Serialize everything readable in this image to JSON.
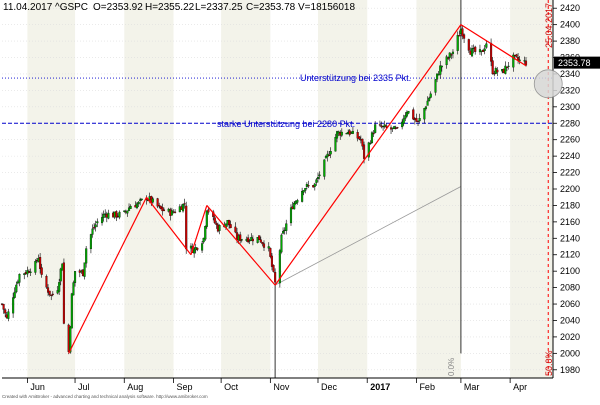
{
  "header": {
    "date": "11.04.2017",
    "symbol": "^GSPC",
    "open": "O=2353.92",
    "high": "H=2355.22",
    "low": "L=2337.25",
    "close": "C=2353.78",
    "volume": "V=18156018"
  },
  "credit": "Created with AmiBroker - advanced charting and technical analysis software. http://www.amibroker.com",
  "colors": {
    "up_candle": "#00aa00",
    "down_candle": "#cc0000",
    "wick": "#000000",
    "trend_line": "#ff0000",
    "support_line": "#0000cc",
    "price_label_bg": "#000000",
    "stripe_shade": "#f3f3ea",
    "date_line": "#ff0000",
    "gray_channel": "#999999"
  },
  "chart_data": {
    "type": "candlestick",
    "title": "^GSPC",
    "ylim": [
      1970,
      2430
    ],
    "y_ticks": [
      1980,
      2000,
      2020,
      2040,
      2060,
      2080,
      2100,
      2120,
      2140,
      2160,
      2180,
      2200,
      2220,
      2240,
      2260,
      2280,
      2300,
      2320,
      2340,
      2360,
      2380,
      2400,
      2420
    ],
    "x_range": [
      "2016-05-16",
      "2017-04-28"
    ],
    "x_ticks": [
      {
        "date": "2016-06-01",
        "label": "Jun",
        "bold": false
      },
      {
        "date": "2016-07-01",
        "label": "Jul",
        "bold": false
      },
      {
        "date": "2016-08-01",
        "label": "Aug",
        "bold": false
      },
      {
        "date": "2016-09-01",
        "label": "Sep",
        "bold": false
      },
      {
        "date": "2016-10-01",
        "label": "Oct",
        "bold": false
      },
      {
        "date": "2016-11-01",
        "label": "Nov",
        "bold": false
      },
      {
        "date": "2016-12-01",
        "label": "Dec",
        "bold": false
      },
      {
        "date": "2017-01-01",
        "label": "2017",
        "bold": true
      },
      {
        "date": "2017-02-01",
        "label": "Feb",
        "bold": false
      },
      {
        "date": "2017-03-01",
        "label": "Mar",
        "bold": false
      },
      {
        "date": "2017-04-01",
        "label": "Apr",
        "bold": false
      }
    ],
    "price_points": [
      [
        "2016-05-16",
        2060
      ],
      [
        "2016-05-19",
        2042
      ],
      [
        "2016-05-24",
        2078
      ],
      [
        "2016-05-27",
        2096
      ],
      [
        "2016-06-01",
        2100
      ],
      [
        "2016-06-06",
        2108
      ],
      [
        "2016-06-08",
        2118
      ],
      [
        "2016-06-10",
        2092
      ],
      [
        "2016-06-13",
        2080
      ],
      [
        "2016-06-16",
        2070
      ],
      [
        "2016-06-20",
        2080
      ],
      [
        "2016-06-23",
        2112
      ],
      [
        "2016-06-24",
        2036
      ],
      [
        "2016-06-27",
        2002
      ],
      [
        "2016-06-29",
        2070
      ],
      [
        "2016-07-01",
        2100
      ],
      [
        "2016-07-06",
        2098
      ],
      [
        "2016-07-08",
        2128
      ],
      [
        "2016-07-12",
        2150
      ],
      [
        "2016-07-15",
        2160
      ],
      [
        "2016-07-20",
        2170
      ],
      [
        "2016-07-26",
        2168
      ],
      [
        "2016-08-01",
        2170
      ],
      [
        "2016-08-05",
        2180
      ],
      [
        "2016-08-10",
        2182
      ],
      [
        "2016-08-15",
        2190
      ],
      [
        "2016-08-19",
        2184
      ],
      [
        "2016-08-24",
        2175
      ],
      [
        "2016-08-31",
        2171
      ],
      [
        "2016-09-08",
        2182
      ],
      [
        "2016-09-09",
        2130
      ],
      [
        "2016-09-14",
        2126
      ],
      [
        "2016-09-20",
        2140
      ],
      [
        "2016-09-22",
        2177
      ],
      [
        "2016-09-29",
        2152
      ],
      [
        "2016-10-05",
        2160
      ],
      [
        "2016-10-11",
        2140
      ],
      [
        "2016-10-18",
        2140
      ],
      [
        "2016-10-25",
        2140
      ],
      [
        "2016-10-31",
        2126
      ],
      [
        "2016-11-04",
        2085
      ],
      [
        "2016-11-08",
        2140
      ],
      [
        "2016-11-15",
        2180
      ],
      [
        "2016-11-22",
        2202
      ],
      [
        "2016-11-29",
        2205
      ],
      [
        "2016-12-07",
        2240
      ],
      [
        "2016-12-13",
        2268
      ],
      [
        "2016-12-20",
        2270
      ],
      [
        "2016-12-28",
        2260
      ],
      [
        "2016-12-30",
        2239
      ],
      [
        "2017-01-06",
        2276
      ],
      [
        "2017-01-13",
        2274
      ],
      [
        "2017-01-20",
        2271
      ],
      [
        "2017-01-26",
        2296
      ],
      [
        "2017-02-02",
        2280
      ],
      [
        "2017-02-10",
        2316
      ],
      [
        "2017-02-16",
        2348
      ],
      [
        "2017-02-24",
        2367
      ],
      [
        "2017-03-01",
        2395
      ],
      [
        "2017-03-07",
        2368
      ],
      [
        "2017-03-14",
        2365
      ],
      [
        "2017-03-17",
        2378
      ],
      [
        "2017-03-21",
        2344
      ],
      [
        "2017-03-27",
        2342
      ],
      [
        "2017-04-03",
        2359
      ],
      [
        "2017-04-07",
        2356
      ],
      [
        "2017-04-11",
        2353.78
      ]
    ],
    "support_lines": [
      {
        "value": 2335,
        "label": "Unterstützung bei 2335 Pkt.",
        "style": "dotted"
      },
      {
        "value": 2280,
        "label": "starke Unterstützung bei 2280 Pkt.",
        "style": "dashed"
      }
    ],
    "red_trend_lines": [
      [
        [
          "2016-06-27",
          2000
        ],
        [
          "2016-08-15",
          2190
        ]
      ],
      [
        [
          "2016-08-15",
          2190
        ],
        [
          "2016-09-12",
          2120
        ]
      ],
      [
        [
          "2016-09-12",
          2120
        ],
        [
          "2016-09-22",
          2180
        ]
      ],
      [
        [
          "2016-09-22",
          2180
        ],
        [
          "2016-11-04",
          2083
        ]
      ],
      [
        [
          "2016-11-04",
          2083
        ],
        [
          "2016-12-30",
          2235
        ]
      ],
      [
        [
          "2016-12-30",
          2235
        ],
        [
          "2017-03-01",
          2400
        ]
      ],
      [
        [
          "2017-03-01",
          2400
        ],
        [
          "2017-04-11",
          2350
        ]
      ]
    ],
    "gray_line": [
      [
        "2016-11-04",
        2083
      ],
      [
        "2017-03-01",
        2203
      ]
    ],
    "vertical_lines": [
      {
        "date": "2016-11-04",
        "from": 1970,
        "to": 2083,
        "color": "#333333"
      },
      {
        "date": "2017-03-01",
        "from": 2000,
        "to": 2430,
        "color": "#333333"
      }
    ],
    "future_date_line": {
      "date": "2017-04-25",
      "label": "25.04.2017"
    },
    "fib_labels": [
      {
        "date": "2017-02-26",
        "label": "0.0%"
      },
      {
        "date": "2017-04-25",
        "label": "50.0%"
      }
    ],
    "last_price_label": "2353.78",
    "circle_marker": [
      "2017-04-25",
      2328
    ]
  }
}
